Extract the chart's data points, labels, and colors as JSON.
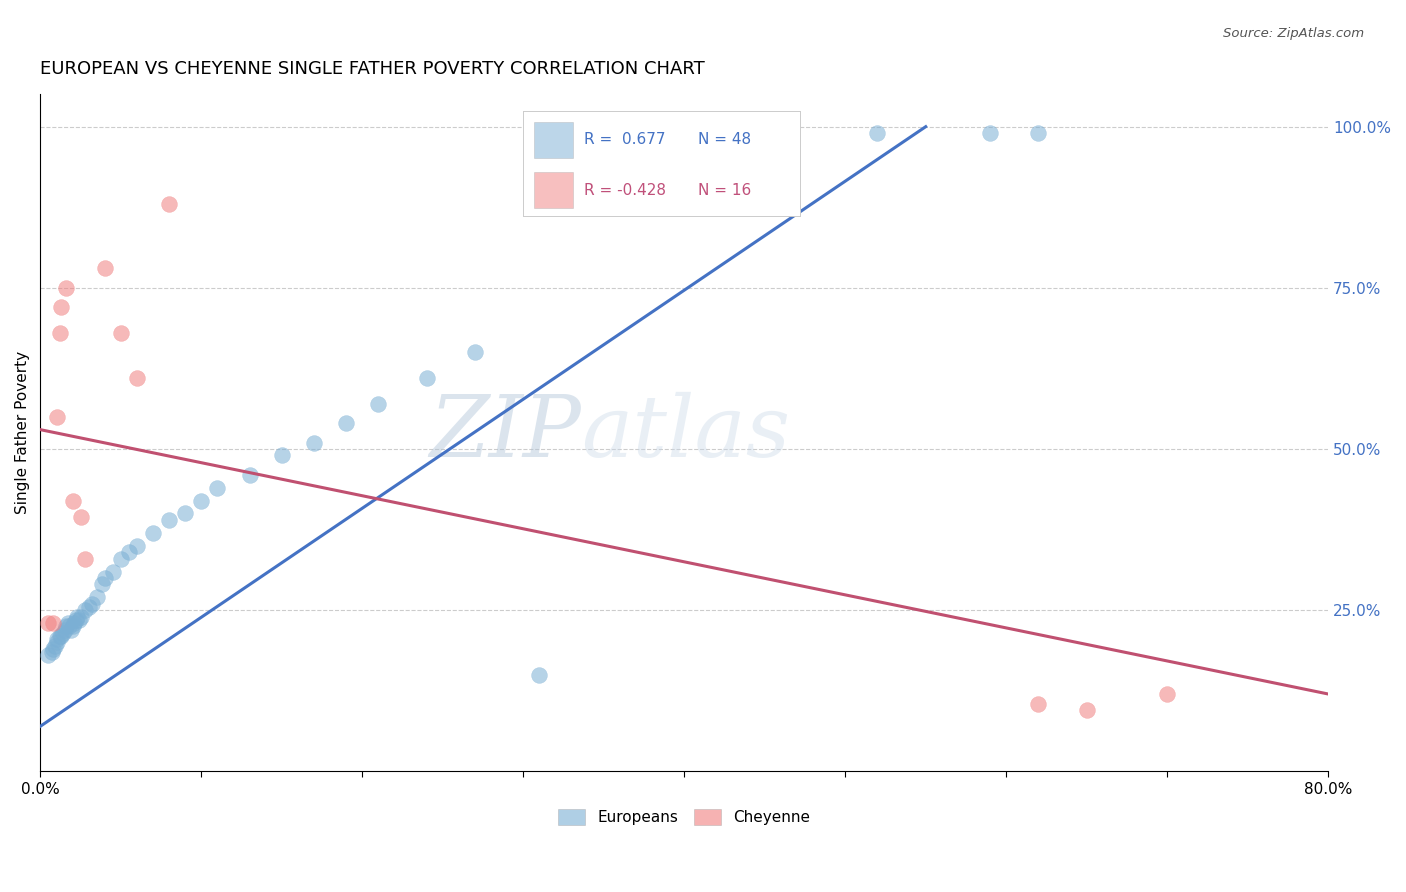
{
  "title": "EUROPEAN VS CHEYENNE SINGLE FATHER POVERTY CORRELATION CHART",
  "source": "Source: ZipAtlas.com",
  "ylabel": "Single Father Poverty",
  "watermark_zip": "ZIP",
  "watermark_atlas": "atlas",
  "xlim": [
    0.0,
    0.8
  ],
  "ylim": [
    0.0,
    1.05
  ],
  "background_color": "#ffffff",
  "european_color": "#7bafd4",
  "cheyenne_color": "#f08080",
  "european_R": 0.677,
  "european_N": 48,
  "cheyenne_R": -0.428,
  "cheyenne_N": 16,
  "legend_label_european": "Europeans",
  "legend_label_cheyenne": "Cheyenne",
  "european_x": [
    0.005,
    0.007,
    0.008,
    0.009,
    0.01,
    0.01,
    0.012,
    0.013,
    0.014,
    0.015,
    0.016,
    0.017,
    0.018,
    0.019,
    0.02,
    0.021,
    0.022,
    0.023,
    0.024,
    0.025,
    0.028,
    0.03,
    0.032,
    0.035,
    0.038,
    0.04,
    0.045,
    0.05,
    0.055,
    0.06,
    0.07,
    0.08,
    0.09,
    0.1,
    0.11,
    0.13,
    0.15,
    0.17,
    0.19,
    0.21,
    0.24,
    0.27,
    0.31,
    0.35,
    0.42,
    0.52,
    0.59,
    0.62
  ],
  "european_y": [
    0.18,
    0.185,
    0.19,
    0.195,
    0.2,
    0.205,
    0.21,
    0.21,
    0.215,
    0.22,
    0.225,
    0.23,
    0.225,
    0.22,
    0.225,
    0.23,
    0.235,
    0.24,
    0.235,
    0.24,
    0.25,
    0.255,
    0.26,
    0.27,
    0.29,
    0.3,
    0.31,
    0.33,
    0.34,
    0.35,
    0.37,
    0.39,
    0.4,
    0.42,
    0.44,
    0.46,
    0.49,
    0.51,
    0.54,
    0.57,
    0.61,
    0.65,
    0.15,
    0.99,
    0.99,
    0.99,
    0.99,
    0.99
  ],
  "cheyenne_x": [
    0.005,
    0.008,
    0.01,
    0.012,
    0.013,
    0.016,
    0.02,
    0.025,
    0.028,
    0.04,
    0.05,
    0.06,
    0.08,
    0.62,
    0.65,
    0.7
  ],
  "cheyenne_y": [
    0.23,
    0.23,
    0.55,
    0.68,
    0.72,
    0.75,
    0.42,
    0.395,
    0.33,
    0.78,
    0.68,
    0.61,
    0.88,
    0.105,
    0.095,
    0.12
  ],
  "blue_line_x": [
    0.0,
    0.55
  ],
  "blue_line_y": [
    0.07,
    1.0
  ],
  "pink_line_x": [
    0.0,
    0.8
  ],
  "pink_line_y": [
    0.53,
    0.12
  ],
  "grid_yticks": [
    0.25,
    0.5,
    0.75,
    1.0
  ],
  "right_axis_color": "#4472c4",
  "title_fontsize": 13,
  "axis_label_fontsize": 11,
  "tick_fontsize": 11,
  "R_label_color_blue": "#4472c4",
  "R_label_color_pink": "#c0507a"
}
